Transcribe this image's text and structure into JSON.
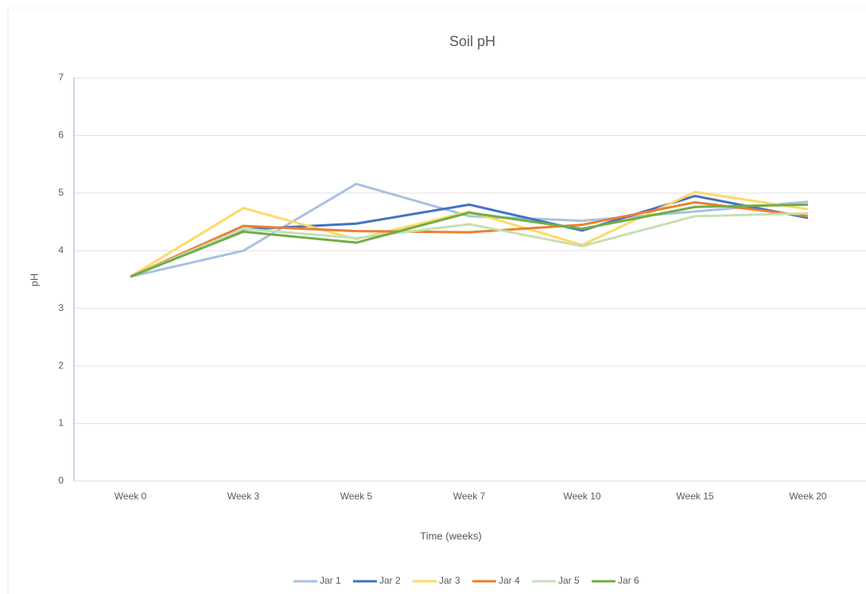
{
  "chart_data": {
    "type": "line",
    "title": "Soil pH",
    "x_label": "Time (weeks)",
    "y_label": "pH",
    "categories": [
      "Week 0",
      "Week 3",
      "Week 5",
      "Week 7",
      "Week 10",
      "Week 15",
      "Week 20"
    ],
    "series": [
      {
        "name": "Jar 1",
        "color": "#a9c1e2",
        "values": [
          3.55,
          4.0,
          5.16,
          4.6,
          4.52,
          4.68,
          4.85
        ]
      },
      {
        "name": "Jar 2",
        "color": "#4472c4",
        "values": [
          3.55,
          4.37,
          4.47,
          4.8,
          4.35,
          4.95,
          4.57
        ]
      },
      {
        "name": "Jar 3",
        "color": "#ffd966",
        "values": [
          3.55,
          4.74,
          4.2,
          4.68,
          4.1,
          5.02,
          4.72
        ]
      },
      {
        "name": "Jar 4",
        "color": "#ed7d31",
        "values": [
          3.55,
          4.43,
          4.34,
          4.32,
          4.45,
          4.84,
          4.6
        ]
      },
      {
        "name": "Jar 5",
        "color": "#c5e0b4",
        "values": [
          3.55,
          4.38,
          4.22,
          4.46,
          4.08,
          4.6,
          4.65
        ]
      },
      {
        "name": "Jar 6",
        "color": "#70ad47",
        "values": [
          3.55,
          4.33,
          4.14,
          4.66,
          4.38,
          4.76,
          4.8
        ]
      }
    ],
    "ylim": [
      0,
      7
    ],
    "yticks": [
      0,
      1,
      2,
      3,
      4,
      5,
      6,
      7
    ],
    "grid": true,
    "legend": "bottom"
  }
}
